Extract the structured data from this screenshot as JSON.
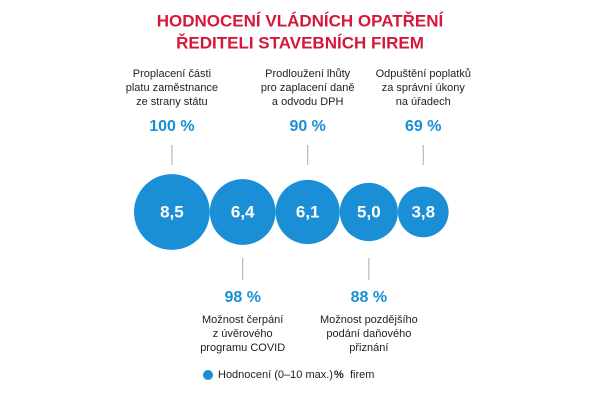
{
  "chart_data": {
    "type": "bubble",
    "title": "HODNOCENÍ VLÁDNÍCH OPATŘENÍ",
    "subtitle": "ŘEDITELI STAVEBNÍCH FIREM",
    "categories": [
      [
        "Proplacení části",
        "platu zaměstnance",
        "ze strany státu"
      ],
      [
        "Možnost čerpání",
        "z úvěrového",
        "programu COVID"
      ],
      [
        "Prodloužení lhůty",
        "pro zaplacení daně",
        "a odvodu DPH"
      ],
      [
        "Možnost pozdějšího",
        "podání daňového",
        "přiznání"
      ],
      [
        "Odpuštění poplatků",
        "za správní úkony",
        "na úřadech"
      ]
    ],
    "series": [
      {
        "name": "Hodnocení (0–10 max.)",
        "color": "#1a8fd6",
        "values": [
          8.5,
          6.4,
          6.1,
          5.0,
          3.8
        ],
        "value_labels": [
          "8,5",
          "6,4",
          "6,1",
          "5,0",
          "3,8"
        ]
      },
      {
        "name": "firem",
        "symbol": "%",
        "color": "#1a8fd6",
        "values": [
          100,
          98,
          90,
          88,
          69
        ],
        "value_labels": [
          "100 %",
          "98 %",
          "90 %",
          "88 %",
          "69 %"
        ]
      }
    ]
  }
}
